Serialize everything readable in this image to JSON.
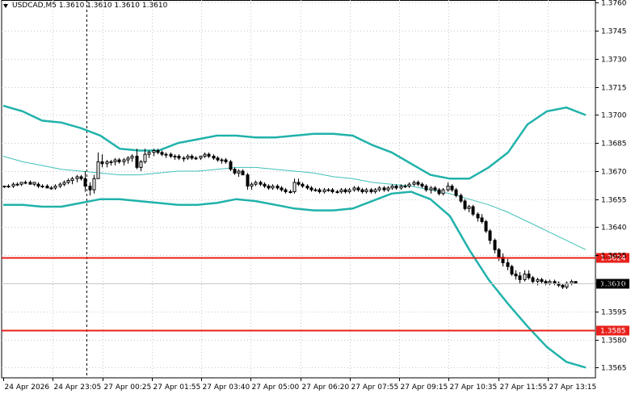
{
  "header": {
    "symbol_info": "USDCAD,M5  1.3610 1.3610 1.3610 1.3610",
    "dropdown_icon": "triangle-down-icon"
  },
  "chart_data": {
    "type": "candlestick",
    "symbol": "USDCAD",
    "timeframe": "M5",
    "ylim": [
      1.35595,
      1.37615
    ],
    "y_ticks": [
      "1.3760",
      "1.3745",
      "1.3730",
      "1.3715",
      "1.3700",
      "1.3685",
      "1.3670",
      "1.3655",
      "1.3640",
      "1.3625",
      "1.3610",
      "1.3595",
      "1.3580",
      "1.3565"
    ],
    "x_ticks": [
      "24 Apr 2026",
      "24 Apr 23:05",
      "27 Apr 00:25",
      "27 Apr 01:55",
      "27 Apr 03:40",
      "27 Apr 05:00",
      "27 Apr 06:20",
      "27 Apr 07:55",
      "27 Apr 09:15",
      "27 Apr 10:35",
      "27 Apr 11:55",
      "27 Apr 13:15"
    ],
    "horizontal_lines": [
      {
        "value": 1.3624,
        "label": "1.3624",
        "color": "#e8201b"
      },
      {
        "value": 1.3585,
        "label": "1.3585",
        "color": "#e8201b"
      }
    ],
    "current_price": {
      "value": 1.361,
      "label": "1.3610"
    },
    "period_separator": "24 Apr 23:05",
    "bollinger": {
      "color": "#20b2aa",
      "upper": [
        1.3705,
        1.3702,
        1.3697,
        1.3696,
        1.3693,
        1.3689,
        1.3682,
        1.3681,
        1.3681,
        1.3685,
        1.3687,
        1.3689,
        1.3689,
        1.3688,
        1.3688,
        1.3689,
        1.369,
        1.369,
        1.3689,
        1.3684,
        1.368,
        1.3674,
        1.3668,
        1.3666,
        1.3666,
        1.3672,
        1.368,
        1.3695,
        1.3702,
        1.3704,
        1.37
      ],
      "middle": [
        1.3678,
        1.3675,
        1.3673,
        1.3671,
        1.367,
        1.3669,
        1.3668,
        1.3668,
        1.3669,
        1.367,
        1.367,
        1.3671,
        1.3672,
        1.3672,
        1.3671,
        1.367,
        1.3669,
        1.3667,
        1.3666,
        1.3664,
        1.3663,
        1.3662,
        1.366,
        1.3658,
        1.3655,
        1.3652,
        1.3648,
        1.3643,
        1.3638,
        1.3633,
        1.3628
      ],
      "lower": [
        1.3652,
        1.3652,
        1.3651,
        1.3651,
        1.3653,
        1.3655,
        1.3655,
        1.3654,
        1.3653,
        1.3652,
        1.3652,
        1.3653,
        1.3655,
        1.3654,
        1.3652,
        1.365,
        1.3649,
        1.3649,
        1.365,
        1.3654,
        1.3658,
        1.3659,
        1.3655,
        1.3646,
        1.3628,
        1.3612,
        1.3599,
        1.3587,
        1.3576,
        1.3568,
        1.3565
      ]
    },
    "candles": [
      [
        1.3662,
        1.3662,
        1.3661,
        1.3662
      ],
      [
        1.3662,
        1.3663,
        1.3661,
        1.3662
      ],
      [
        1.3662,
        1.3664,
        1.3661,
        1.3663
      ],
      [
        1.3663,
        1.3664,
        1.3662,
        1.3663
      ],
      [
        1.3663,
        1.3664,
        1.3662,
        1.3664
      ],
      [
        1.3664,
        1.3665,
        1.3663,
        1.3664
      ],
      [
        1.3664,
        1.3665,
        1.3663,
        1.3663
      ],
      [
        1.3663,
        1.3664,
        1.3662,
        1.3664
      ],
      [
        1.3663,
        1.3664,
        1.3661,
        1.3662
      ],
      [
        1.3662,
        1.3663,
        1.3661,
        1.3662
      ],
      [
        1.3662,
        1.3663,
        1.3661,
        1.3661
      ],
      [
        1.3661,
        1.3662,
        1.366,
        1.3661
      ],
      [
        1.3661,
        1.3663,
        1.366,
        1.3662
      ],
      [
        1.3662,
        1.3664,
        1.3661,
        1.3663
      ],
      [
        1.3663,
        1.3665,
        1.3662,
        1.3664
      ],
      [
        1.3664,
        1.3666,
        1.3663,
        1.3665
      ],
      [
        1.3665,
        1.3667,
        1.3663,
        1.3666
      ],
      [
        1.3666,
        1.3668,
        1.3664,
        1.3667
      ],
      [
        1.3667,
        1.3668,
        1.3665,
        1.3666
      ],
      [
        1.3666,
        1.367,
        1.3659,
        1.3662
      ],
      [
        1.3662,
        1.3664,
        1.3657,
        1.366
      ],
      [
        1.366,
        1.3668,
        1.3658,
        1.3666
      ],
      [
        1.3666,
        1.368,
        1.3666,
        1.3675
      ],
      [
        1.3675,
        1.3679,
        1.3672,
        1.3674
      ],
      [
        1.3674,
        1.3676,
        1.3672,
        1.3675
      ],
      [
        1.3675,
        1.3676,
        1.3673,
        1.3675
      ],
      [
        1.3675,
        1.3677,
        1.3673,
        1.3676
      ],
      [
        1.3676,
        1.3677,
        1.3674,
        1.3675
      ],
      [
        1.3675,
        1.3677,
        1.3673,
        1.3676
      ],
      [
        1.3676,
        1.3678,
        1.3674,
        1.3677
      ],
      [
        1.3677,
        1.3679,
        1.3675,
        1.3678
      ],
      [
        1.3678,
        1.3682,
        1.3671,
        1.3672
      ],
      [
        1.3672,
        1.3676,
        1.367,
        1.3675
      ],
      [
        1.3675,
        1.3682,
        1.3674,
        1.3679
      ],
      [
        1.3679,
        1.3681,
        1.3677,
        1.368
      ],
      [
        1.368,
        1.3682,
        1.3678,
        1.3681
      ],
      [
        1.3681,
        1.3682,
        1.3679,
        1.368
      ],
      [
        1.368,
        1.3681,
        1.3678,
        1.3679
      ],
      [
        1.3679,
        1.368,
        1.3677,
        1.3679
      ],
      [
        1.3679,
        1.368,
        1.3677,
        1.3678
      ],
      [
        1.3678,
        1.3679,
        1.3676,
        1.3678
      ],
      [
        1.3678,
        1.3679,
        1.3676,
        1.3677
      ],
      [
        1.3677,
        1.3678,
        1.3675,
        1.3677
      ],
      [
        1.3677,
        1.3679,
        1.3676,
        1.3678
      ],
      [
        1.3678,
        1.3679,
        1.3676,
        1.3677
      ],
      [
        1.3677,
        1.3678,
        1.3676,
        1.3677
      ],
      [
        1.3677,
        1.3678,
        1.3676,
        1.3678
      ],
      [
        1.3678,
        1.368,
        1.3677,
        1.3679
      ],
      [
        1.3679,
        1.368,
        1.3677,
        1.3678
      ],
      [
        1.3678,
        1.3679,
        1.3676,
        1.3677
      ],
      [
        1.3677,
        1.3678,
        1.3675,
        1.3676
      ],
      [
        1.3676,
        1.3677,
        1.3674,
        1.3676
      ],
      [
        1.3676,
        1.3677,
        1.3674,
        1.3675
      ],
      [
        1.3675,
        1.3676,
        1.367,
        1.3671
      ],
      [
        1.3671,
        1.3672,
        1.3668,
        1.3669
      ],
      [
        1.3669,
        1.3671,
        1.3667,
        1.367
      ],
      [
        1.367,
        1.3671,
        1.3668,
        1.3668
      ],
      [
        1.3668,
        1.3669,
        1.366,
        1.3662
      ],
      [
        1.3662,
        1.3664,
        1.366,
        1.3663
      ],
      [
        1.3663,
        1.3665,
        1.3662,
        1.3664
      ],
      [
        1.3664,
        1.3665,
        1.3662,
        1.3663
      ],
      [
        1.3663,
        1.3664,
        1.3661,
        1.3662
      ],
      [
        1.3662,
        1.3663,
        1.366,
        1.3661
      ],
      [
        1.3661,
        1.3663,
        1.366,
        1.3662
      ],
      [
        1.3662,
        1.3663,
        1.366,
        1.3661
      ],
      [
        1.3661,
        1.3662,
        1.3659,
        1.366
      ],
      [
        1.366,
        1.3661,
        1.3658,
        1.3659
      ],
      [
        1.3659,
        1.366,
        1.3658,
        1.3659
      ],
      [
        1.3659,
        1.3666,
        1.3658,
        1.3664
      ],
      [
        1.3664,
        1.3666,
        1.3662,
        1.3663
      ],
      [
        1.3663,
        1.3664,
        1.3661,
        1.3662
      ],
      [
        1.3662,
        1.3663,
        1.366,
        1.3661
      ],
      [
        1.3661,
        1.3662,
        1.3659,
        1.366
      ],
      [
        1.366,
        1.3661,
        1.3659,
        1.366
      ],
      [
        1.366,
        1.3661,
        1.3658,
        1.3659
      ],
      [
        1.3659,
        1.3661,
        1.3658,
        1.366
      ],
      [
        1.366,
        1.3661,
        1.3659,
        1.366
      ],
      [
        1.366,
        1.3661,
        1.3658,
        1.3659
      ],
      [
        1.3659,
        1.366,
        1.3658,
        1.3659
      ],
      [
        1.3659,
        1.3661,
        1.3658,
        1.366
      ],
      [
        1.366,
        1.3661,
        1.3658,
        1.3659
      ],
      [
        1.3659,
        1.3661,
        1.3658,
        1.366
      ],
      [
        1.366,
        1.3662,
        1.3659,
        1.3661
      ],
      [
        1.3661,
        1.3662,
        1.3659,
        1.366
      ],
      [
        1.366,
        1.3661,
        1.3658,
        1.3659
      ],
      [
        1.3659,
        1.3661,
        1.3658,
        1.366
      ],
      [
        1.366,
        1.3661,
        1.3658,
        1.3659
      ],
      [
        1.3659,
        1.3661,
        1.3658,
        1.366
      ],
      [
        1.366,
        1.3662,
        1.3659,
        1.3661
      ],
      [
        1.3661,
        1.3662,
        1.3659,
        1.366
      ],
      [
        1.366,
        1.3662,
        1.3659,
        1.3661
      ],
      [
        1.3661,
        1.3663,
        1.366,
        1.3662
      ],
      [
        1.3662,
        1.3663,
        1.366,
        1.3661
      ],
      [
        1.3661,
        1.3663,
        1.366,
        1.3662
      ],
      [
        1.3662,
        1.3663,
        1.3661,
        1.3662
      ],
      [
        1.3662,
        1.3664,
        1.3661,
        1.3663
      ],
      [
        1.3663,
        1.3665,
        1.3662,
        1.3664
      ],
      [
        1.3664,
        1.3665,
        1.3662,
        1.3663
      ],
      [
        1.3663,
        1.3664,
        1.3661,
        1.3662
      ],
      [
        1.3662,
        1.3663,
        1.3659,
        1.366
      ],
      [
        1.366,
        1.3662,
        1.3658,
        1.3661
      ],
      [
        1.3661,
        1.3662,
        1.3659,
        1.366
      ],
      [
        1.366,
        1.3661,
        1.3657,
        1.3658
      ],
      [
        1.3658,
        1.3661,
        1.3657,
        1.366
      ],
      [
        1.366,
        1.3664,
        1.3659,
        1.3662
      ],
      [
        1.3662,
        1.3663,
        1.3659,
        1.366
      ],
      [
        1.366,
        1.3661,
        1.3656,
        1.3657
      ],
      [
        1.3657,
        1.3658,
        1.3653,
        1.3654
      ],
      [
        1.3654,
        1.3655,
        1.3649,
        1.365
      ],
      [
        1.365,
        1.3652,
        1.3648,
        1.3651
      ],
      [
        1.3651,
        1.3652,
        1.3646,
        1.3647
      ],
      [
        1.3647,
        1.3648,
        1.3643,
        1.3645
      ],
      [
        1.3645,
        1.3647,
        1.3642,
        1.3643
      ],
      [
        1.3643,
        1.3644,
        1.3637,
        1.3638
      ],
      [
        1.3638,
        1.3639,
        1.3631,
        1.3633
      ],
      [
        1.3633,
        1.3634,
        1.3626,
        1.3628
      ],
      [
        1.3628,
        1.3629,
        1.3622,
        1.3624
      ],
      [
        1.3624,
        1.3626,
        1.3619,
        1.3621
      ],
      [
        1.3621,
        1.3623,
        1.3617,
        1.3619
      ],
      [
        1.3619,
        1.362,
        1.3614,
        1.3615
      ],
      [
        1.3615,
        1.3617,
        1.3612,
        1.3614
      ],
      [
        1.3614,
        1.3616,
        1.361,
        1.3612
      ],
      [
        1.3612,
        1.3617,
        1.3611,
        1.3615
      ],
      [
        1.3615,
        1.3617,
        1.3612,
        1.3613
      ],
      [
        1.3613,
        1.3614,
        1.361,
        1.3611
      ],
      [
        1.3611,
        1.3613,
        1.3609,
        1.3612
      ],
      [
        1.3612,
        1.3613,
        1.361,
        1.3611
      ],
      [
        1.3611,
        1.3612,
        1.3609,
        1.361
      ],
      [
        1.361,
        1.3612,
        1.3609,
        1.3611
      ],
      [
        1.3611,
        1.3612,
        1.3609,
        1.361
      ],
      [
        1.361,
        1.3611,
        1.3608,
        1.3609
      ],
      [
        1.3609,
        1.361,
        1.3607,
        1.3608
      ],
      [
        1.3608,
        1.3611,
        1.3607,
        1.361
      ],
      [
        1.361,
        1.3612,
        1.3609,
        1.3611
      ],
      [
        1.3611,
        1.3611,
        1.361,
        1.361
      ]
    ],
    "colors": {
      "background": "#ffffff",
      "grid": "#c8c8c8",
      "candle": "#000000",
      "price_box": "#000000",
      "level_line": "#e8201b",
      "band": "#20b2aa",
      "middle_band": "#40c0b8"
    }
  }
}
